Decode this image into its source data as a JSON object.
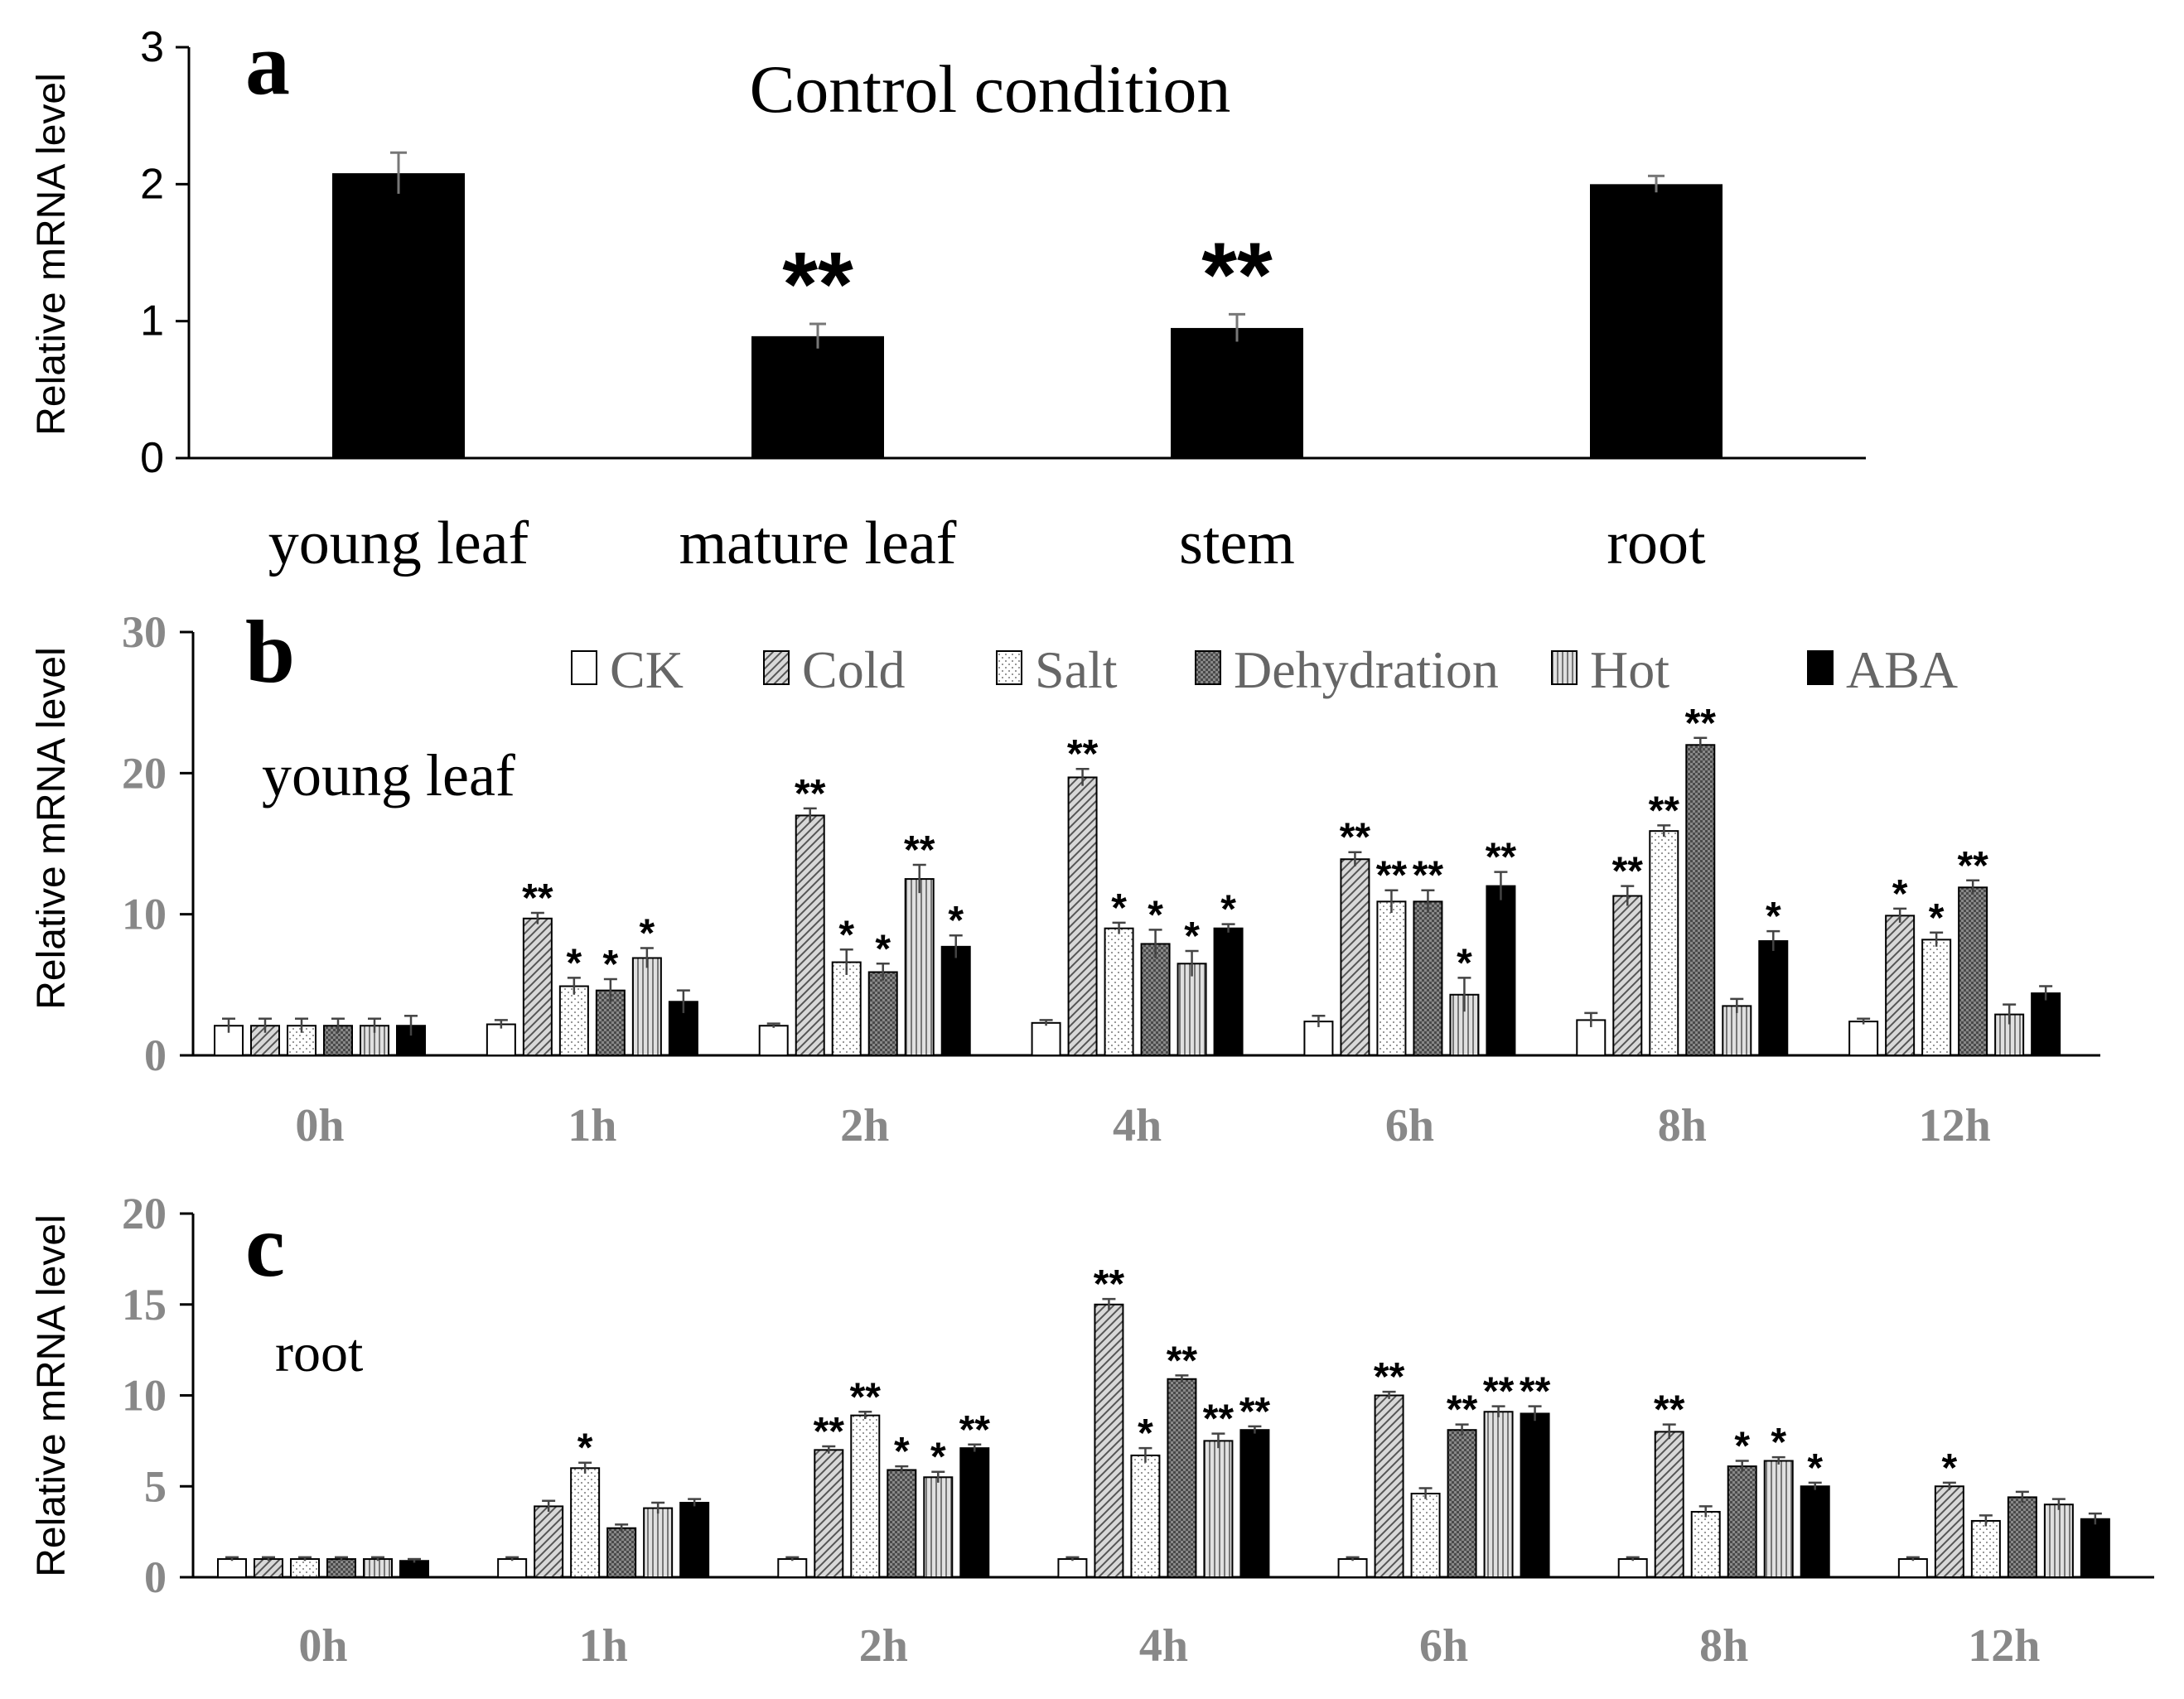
{
  "chart_data": [
    {
      "panel": "a",
      "type": "bar",
      "title": "Control condition",
      "xlabel": "",
      "ylabel": "Relative mRNA level",
      "ylim": [
        0,
        3
      ],
      "yticks": [
        "0",
        "1",
        "2",
        "3"
      ],
      "categories": [
        "young leaf",
        "mature leaf",
        "stem",
        "root"
      ],
      "values": [
        2.08,
        0.89,
        0.95,
        2.0
      ],
      "errors": [
        0.15,
        0.09,
        0.1,
        0.06
      ],
      "significance": [
        "",
        "**",
        "**",
        ""
      ],
      "color": "#000000"
    },
    {
      "panel": "b",
      "type": "bar",
      "title": "young leaf",
      "xlabel": "",
      "ylabel": "Relative mRNA level",
      "ylim": [
        0,
        30
      ],
      "yticks": [
        "0",
        "10",
        "20",
        "30"
      ],
      "categories": [
        "0h",
        "1h",
        "2h",
        "4h",
        "6h",
        "8h",
        "12h"
      ],
      "series": [
        {
          "name": "CK",
          "values": [
            2.1,
            2.2,
            2.1,
            2.3,
            2.4,
            2.5,
            2.4
          ],
          "errors": [
            0.5,
            0.3,
            0.15,
            0.2,
            0.4,
            0.5,
            0.2
          ],
          "significance": [
            "",
            "",
            "",
            "",
            "",
            "",
            ""
          ]
        },
        {
          "name": "Cold",
          "values": [
            2.1,
            9.7,
            17.0,
            19.7,
            13.9,
            11.3,
            9.9
          ],
          "errors": [
            0.5,
            0.4,
            0.5,
            0.6,
            0.5,
            0.7,
            0.5
          ],
          "significance": [
            "",
            "**",
            "**",
            "**",
            "**",
            "**",
            "*"
          ]
        },
        {
          "name": "Salt",
          "values": [
            2.1,
            4.9,
            6.6,
            9.0,
            10.9,
            15.9,
            8.2
          ],
          "errors": [
            0.5,
            0.6,
            0.9,
            0.4,
            0.8,
            0.4,
            0.5
          ],
          "significance": [
            "",
            "*",
            "*",
            "*",
            "**",
            "**",
            "*"
          ]
        },
        {
          "name": "Dehydration",
          "values": [
            2.1,
            4.6,
            5.9,
            7.9,
            10.9,
            22.0,
            11.9
          ],
          "errors": [
            0.5,
            0.8,
            0.6,
            1.0,
            0.8,
            0.5,
            0.5
          ],
          "significance": [
            "",
            "*",
            "*",
            "*",
            "**",
            "**",
            "**"
          ]
        },
        {
          "name": "Hot",
          "values": [
            2.1,
            6.9,
            12.5,
            6.5,
            4.3,
            3.5,
            2.9
          ],
          "errors": [
            0.5,
            0.7,
            1.0,
            0.9,
            1.2,
            0.5,
            0.7
          ],
          "significance": [
            "",
            "*",
            "**",
            "*",
            "*",
            "",
            ""
          ]
        },
        {
          "name": "ABA",
          "values": [
            2.1,
            3.8,
            7.7,
            9.0,
            12.0,
            8.1,
            4.4
          ],
          "errors": [
            0.7,
            0.8,
            0.8,
            0.3,
            1.0,
            0.7,
            0.5
          ],
          "significance": [
            "",
            "",
            "*",
            "*",
            "**",
            "*",
            ""
          ]
        }
      ],
      "legend": "top"
    },
    {
      "panel": "c",
      "type": "bar",
      "title": "root",
      "xlabel": "",
      "ylabel": "Relative mRNA level",
      "ylim": [
        0,
        20
      ],
      "yticks": [
        "0",
        "5",
        "10",
        "15",
        "20"
      ],
      "categories": [
        "0h",
        "1h",
        "2h",
        "4h",
        "6h",
        "8h",
        "12h"
      ],
      "series": [
        {
          "name": "CK",
          "values": [
            1.0,
            1.0,
            1.0,
            1.0,
            1.0,
            1.0,
            1.0
          ],
          "errors": [
            0.1,
            0.1,
            0.1,
            0.1,
            0.1,
            0.1,
            0.1
          ],
          "significance": [
            "",
            "",
            "",
            "",
            "",
            "",
            ""
          ]
        },
        {
          "name": "Cold",
          "values": [
            1.0,
            3.9,
            7.0,
            15.0,
            10.0,
            8.0,
            5.0
          ],
          "errors": [
            0.1,
            0.3,
            0.2,
            0.3,
            0.2,
            0.4,
            0.2
          ],
          "significance": [
            "",
            "",
            "**",
            "**",
            "**",
            "**",
            "*"
          ]
        },
        {
          "name": "Salt",
          "values": [
            1.0,
            6.0,
            8.9,
            6.7,
            4.6,
            3.6,
            3.1
          ],
          "errors": [
            0.1,
            0.3,
            0.2,
            0.4,
            0.3,
            0.3,
            0.3
          ],
          "significance": [
            "",
            "*",
            "**",
            "*",
            "",
            "",
            ""
          ]
        },
        {
          "name": "Dehydration",
          "values": [
            1.0,
            2.7,
            5.9,
            10.9,
            8.1,
            6.1,
            4.4
          ],
          "errors": [
            0.1,
            0.2,
            0.2,
            0.2,
            0.3,
            0.3,
            0.3
          ],
          "significance": [
            "",
            "",
            "*",
            "**",
            "**",
            "*",
            ""
          ]
        },
        {
          "name": "Hot",
          "values": [
            1.0,
            3.8,
            5.5,
            7.5,
            9.1,
            6.4,
            4.0
          ],
          "errors": [
            0.1,
            0.3,
            0.3,
            0.4,
            0.3,
            0.2,
            0.3
          ],
          "significance": [
            "",
            "",
            "*",
            "**",
            "**",
            "*",
            ""
          ]
        },
        {
          "name": "ABA",
          "values": [
            0.9,
            4.1,
            7.1,
            8.1,
            9.0,
            5.0,
            3.2
          ],
          "errors": [
            0.1,
            0.2,
            0.2,
            0.2,
            0.4,
            0.2,
            0.3
          ],
          "significance": [
            "",
            "",
            "**",
            "**",
            "**",
            "*",
            ""
          ]
        }
      ]
    }
  ],
  "panel_labels": [
    "a",
    "b",
    "c"
  ],
  "series_colors": {
    "CK": "#ffffff",
    "Cold": "#b9b9b9",
    "Salt": "#f2f2f2",
    "Dehydration": "#9a9a9a",
    "Hot": "#cfcfcf",
    "ABA": "#000000"
  }
}
